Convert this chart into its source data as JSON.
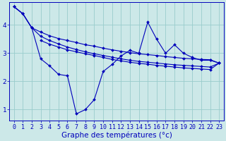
{
  "background_color": "#cce8e8",
  "grid_color": "#99cccc",
  "line_color": "#0000bb",
  "xlabel": "Graphe des températures (°c)",
  "xlabel_fontsize": 7.5,
  "tick_fontsize": 6,
  "yticks": [
    1,
    2,
    3,
    4
  ],
  "xticks": [
    0,
    1,
    2,
    3,
    4,
    5,
    6,
    7,
    8,
    9,
    10,
    11,
    12,
    13,
    14,
    15,
    16,
    17,
    18,
    19,
    20,
    21,
    22,
    23
  ],
  "xlim": [
    -0.5,
    23.5
  ],
  "ylim": [
    0.6,
    4.8
  ],
  "series1_zigzag": {
    "x": [
      0,
      1,
      2,
      3,
      4,
      5,
      6,
      7,
      8,
      9,
      10,
      11,
      12,
      13,
      14,
      15,
      16,
      17,
      18,
      19,
      20,
      21,
      22,
      23
    ],
    "y": [
      4.65,
      4.4,
      3.9,
      2.8,
      2.55,
      2.25,
      2.2,
      0.85,
      1.0,
      1.35,
      2.35,
      2.6,
      2.9,
      3.1,
      3.0,
      4.1,
      3.5,
      3.0,
      3.3,
      3.0,
      2.85,
      2.75,
      2.75,
      2.65
    ]
  },
  "series2_top": {
    "x": [
      0,
      1,
      2,
      3,
      4,
      5,
      6,
      7,
      8,
      9,
      10,
      11,
      12,
      13,
      14,
      15,
      16,
      17,
      18,
      19,
      20,
      21,
      22,
      23
    ],
    "y": [
      4.65,
      4.4,
      3.9,
      3.75,
      3.62,
      3.52,
      3.45,
      3.38,
      3.3,
      3.25,
      3.18,
      3.12,
      3.07,
      3.02,
      2.98,
      2.95,
      2.92,
      2.88,
      2.85,
      2.82,
      2.8,
      2.78,
      2.77,
      2.65
    ]
  },
  "series3_mid": {
    "x": [
      3,
      4,
      5,
      6,
      7,
      8,
      9,
      10,
      11,
      12,
      13,
      14,
      15,
      16,
      17,
      18,
      19,
      20,
      21,
      22,
      23
    ],
    "y": [
      3.45,
      3.32,
      3.22,
      3.12,
      3.05,
      2.98,
      2.92,
      2.85,
      2.78,
      2.73,
      2.68,
      2.64,
      2.61,
      2.57,
      2.54,
      2.51,
      2.48,
      2.46,
      2.44,
      2.42,
      2.65
    ]
  },
  "series4_bot": {
    "x": [
      0,
      1,
      2,
      3,
      4,
      5,
      6,
      7,
      8,
      9,
      10,
      11,
      12,
      13,
      14,
      15,
      16,
      17,
      18,
      19,
      20,
      21,
      22,
      23
    ],
    "y": [
      4.65,
      4.4,
      3.9,
      3.6,
      3.45,
      3.33,
      3.22,
      3.13,
      3.05,
      2.98,
      2.92,
      2.86,
      2.8,
      2.75,
      2.71,
      2.68,
      2.65,
      2.62,
      2.59,
      2.57,
      2.55,
      2.53,
      2.51,
      2.65
    ]
  }
}
